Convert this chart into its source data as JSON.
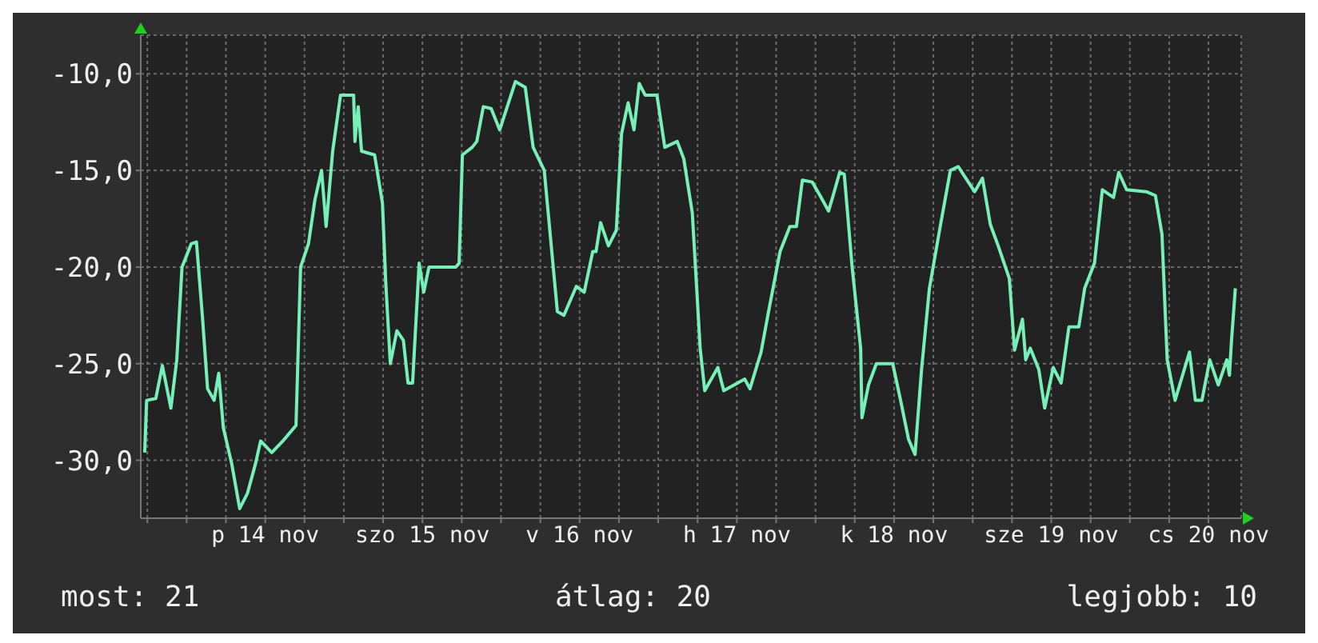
{
  "chart_data": {
    "type": "line",
    "x": [
      "--11-13T17:36",
      "--11-13T17:54",
      "--11-13T19:18",
      "--11-13T20:18",
      "--11-13T21:36",
      "--11-13T22:30",
      "--11-13T23:18",
      "--11-14T00:42",
      "--11-14T01:30",
      "--11-14T02:24",
      "--11-14T03:12",
      "--11-14T04:12",
      "--11-14T04:54",
      "--11-14T05:36",
      "--11-14T06:54",
      "--11-14T08:06",
      "--11-14T09:18",
      "--11-14T10:30",
      "--11-14T11:18",
      "--11-14T13:00",
      "--11-14T14:42",
      "--11-14T16:42",
      "--11-14T17:24",
      "--11-14T18:36",
      "--11-14T19:36",
      "--11-14T20:36",
      "--11-14T21:18",
      "--11-14T22:18",
      "--11-14T23:30",
      "--11-15T01:30",
      "--11-15T01:42",
      "--11-15T02:12",
      "--11-15T02:42",
      "--11-15T04:42",
      "--11-15T05:54",
      "--11-15T06:24",
      "--11-15T07:06",
      "--11-15T08:06",
      "--11-15T09:06",
      "--11-15T09:48",
      "--11-15T10:30",
      "--11-15T11:30",
      "--11-15T12:12",
      "--11-15T13:00",
      "--11-15T17:06",
      "--11-15T17:36",
      "--11-15T18:06",
      "--11-15T19:36",
      "--11-15T20:18",
      "--11-15T21:18",
      "--11-15T22:30",
      "--11-15T23:48",
      "--11-16T02:12",
      "--11-16T03:42",
      "--11-16T04:54",
      "--11-16T06:36",
      "--11-16T08:36",
      "--11-16T09:36",
      "--11-16T11:30",
      "--11-16T12:42",
      "--11-16T14:00",
      "--11-16T14:30",
      "--11-16T15:12",
      "--11-16T16:24",
      "--11-16T17:36",
      "--11-16T18:24",
      "--11-16T19:24",
      "--11-16T20:18",
      "--11-16T21:06",
      "--11-16T22:00",
      "--11-16T23:48",
      "--11-17T01:00",
      "--11-17T02:54",
      "--11-17T03:54",
      "--11-17T05:12",
      "--11-17T06:24",
      "--11-17T07:06",
      "--11-17T09:06",
      "--11-17T10:00",
      "--11-17T13:12",
      "--11-17T14:00",
      "--11-17T15:42",
      "--11-17T16:54",
      "--11-17T18:36",
      "--11-17T20:06",
      "--11-17T21:06",
      "--11-17T22:00",
      "--11-17T23:30",
      "--11-18T00:42",
      "--11-18T02:00",
      "--11-18T02:42",
      "--11-18T03:42",
      "--11-18T04:24",
      "--11-18T05:36",
      "--11-18T06:54",
      "--11-18T07:06",
      "--11-18T08:06",
      "--11-18T09:18",
      "--11-18T11:48",
      "--11-18T13:00",
      "--11-18T14:12",
      "--11-18T15:12",
      "--11-18T16:12",
      "--11-18T17:24",
      "--11-18T19:06",
      "--11-18T20:36",
      "--11-18T21:48",
      "--11-19T00:18",
      "--11-19T01:30",
      "--11-19T02:42",
      "--11-19T03:54",
      "--11-19T05:36",
      "--11-19T06:24",
      "--11-19T07:36",
      "--11-19T08:06",
      "--11-19T08:48",
      "--11-19T10:06",
      "--11-19T11:00",
      "--11-19T12:18",
      "--11-19T13:30",
      "--11-19T14:42",
      "--11-19T16:12",
      "--11-19T17:06",
      "--11-19T18:36",
      "--11-19T19:48",
      "--11-19T21:30",
      "--11-19T22:18",
      "--11-19T23:30",
      "--11-20T02:30",
      "--11-20T03:54",
      "--11-20T04:54",
      "--11-20T05:42",
      "--11-20T06:54",
      "--11-20T09:06",
      "--11-20T10:00",
      "--11-20T11:00",
      "--11-20T12:12",
      "--11-20T13:30",
      "--11-20T14:48",
      "--11-20T15:12",
      "--11-20T15:30",
      "--11-20T16:06"
    ],
    "series": [
      {
        "color": "#77f0b8",
        "values": [
          -29.6,
          -26.9,
          -26.8,
          -25.1,
          -27.3,
          -24.8,
          -20,
          -18.8,
          -18.7,
          -22.5,
          -26.3,
          -26.9,
          -25.5,
          -28.3,
          -30.2,
          -32.5,
          -31.7,
          -30.2,
          -29,
          -29.6,
          -29,
          -28.2,
          -20,
          -18.8,
          -16.5,
          -15,
          -17.9,
          -14,
          -11.1,
          -11.1,
          -13.5,
          -11.7,
          -14,
          -14.2,
          -16.7,
          -20.8,
          -25,
          -23.3,
          -23.8,
          -26,
          -26,
          -19.8,
          -21.3,
          -20,
          -20,
          -19.8,
          -14.2,
          -13.8,
          -13.5,
          -11.7,
          -11.8,
          -12.9,
          -10.4,
          -10.7,
          -13.8,
          -15,
          -22.3,
          -22.5,
          -21,
          -21.3,
          -19.2,
          -19.2,
          -17.7,
          -18.9,
          -18.1,
          -13.1,
          -11.5,
          -12.9,
          -10.5,
          -11.1,
          -11.1,
          -13.8,
          -13.5,
          -14.4,
          -17.2,
          -24.2,
          -26.4,
          -25.2,
          -26.4,
          -25.8,
          -26.3,
          -24.4,
          -22.2,
          -19.2,
          -17.9,
          -17.9,
          -15.5,
          -15.6,
          -16.3,
          -17.1,
          -16.3,
          -15.1,
          -15.2,
          -20,
          -24.2,
          -27.8,
          -26.1,
          -25,
          -25,
          -26.9,
          -28.9,
          -29.7,
          -25.3,
          -21.1,
          -17.8,
          -15,
          -14.8,
          -16.1,
          -15.4,
          -17.8,
          -18.9,
          -20.6,
          -24.3,
          -22.7,
          -24.8,
          -24.2,
          -25.3,
          -27.3,
          -25.2,
          -26,
          -23.1,
          -23.1,
          -21.1,
          -19.8,
          -16,
          -16.4,
          -15.1,
          -16,
          -16.1,
          -16.3,
          -18.3,
          -24.8,
          -26.9,
          -24.4,
          -26.9,
          -26.9,
          -24.8,
          -26.1,
          -24.8,
          -25.6,
          -23.9,
          -21.1
        ]
      }
    ],
    "xlim": [
      "--11-13T17:00",
      "--11-20T17:00"
    ],
    "xticks": [
      {
        "value": "--11-13T18:00",
        "label": null
      },
      {
        "value": "--11-14T00:00",
        "label": null
      },
      {
        "value": "--11-14T06:00",
        "label": null
      },
      {
        "value": "--11-14T12:00",
        "label": "p 14 nov"
      },
      {
        "value": "--11-14T18:00",
        "label": null
      },
      {
        "value": "--11-15T00:00",
        "label": null
      },
      {
        "value": "--11-15T06:00",
        "label": null
      },
      {
        "value": "--11-15T12:00",
        "label": "szo 15 nov"
      },
      {
        "value": "--11-15T18:00",
        "label": null
      },
      {
        "value": "--11-16T00:00",
        "label": null
      },
      {
        "value": "--11-16T06:00",
        "label": null
      },
      {
        "value": "--11-16T12:00",
        "label": "v 16 nov"
      },
      {
        "value": "--11-16T18:00",
        "label": null
      },
      {
        "value": "--11-17T00:00",
        "label": null
      },
      {
        "value": "--11-17T06:00",
        "label": null
      },
      {
        "value": "--11-17T12:00",
        "label": "h 17 nov"
      },
      {
        "value": "--11-17T18:00",
        "label": null
      },
      {
        "value": "--11-18T00:00",
        "label": null
      },
      {
        "value": "--11-18T06:00",
        "label": null
      },
      {
        "value": "--11-18T12:00",
        "label": "k 18 nov"
      },
      {
        "value": "--11-18T18:00",
        "label": null
      },
      {
        "value": "--11-19T00:00",
        "label": null
      },
      {
        "value": "--11-19T06:00",
        "label": null
      },
      {
        "value": "--11-19T12:00",
        "label": "sze 19 nov"
      },
      {
        "value": "--11-19T18:00",
        "label": null
      },
      {
        "value": "--11-20T00:00",
        "label": null
      },
      {
        "value": "--11-20T06:00",
        "label": null
      },
      {
        "value": "--11-20T12:00",
        "label": "cs 20 nov"
      }
    ],
    "ylim": [
      -33,
      -8
    ],
    "yticks": [
      {
        "value": -30,
        "label": "-30,0"
      },
      {
        "value": -25,
        "label": "-25,0"
      },
      {
        "value": -20,
        "label": "-20,0"
      },
      {
        "value": -15,
        "label": "-15,0"
      },
      {
        "value": -10,
        "label": "-10,0"
      }
    ],
    "grid": true,
    "marker": "none",
    "line_style": "solid",
    "annotations": [
      "most: 21",
      "átlag: 20",
      "legjobb: 10"
    ]
  }
}
